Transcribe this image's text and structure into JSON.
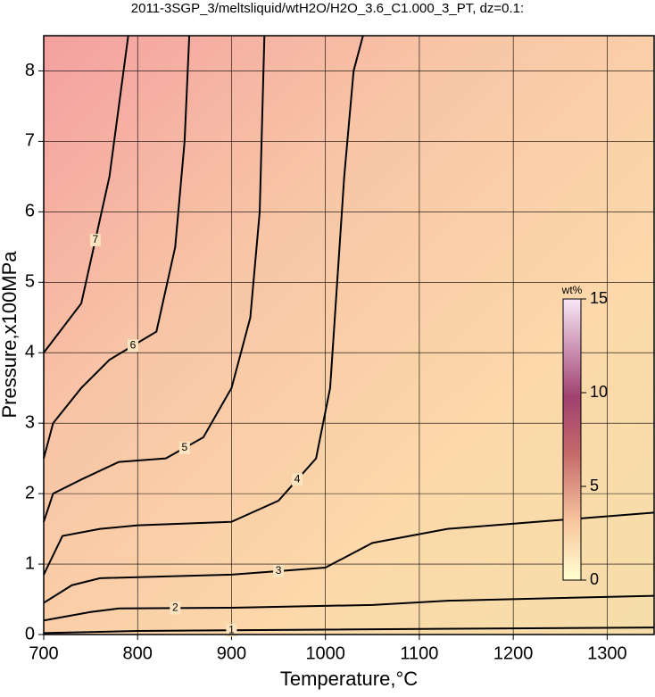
{
  "chart_data": {
    "type": "contour",
    "title": "2011-3SGP_3/meltsliquid/wtH2O/H2O_3.6_C1.000_3_PT, dz=0.1:",
    "x_label": "Temperature,°C",
    "y_label": "Pressure,x100MPa",
    "xlim": [
      700,
      1350
    ],
    "ylim": [
      0,
      8.5
    ],
    "xticks": [
      700,
      800,
      900,
      1000,
      1100,
      1200,
      1300
    ],
    "yticks": [
      0,
      1,
      2,
      3,
      4,
      5,
      6,
      7,
      8
    ],
    "grid": true,
    "colorbar": {
      "label": "wt%",
      "lim": [
        0,
        15
      ],
      "ticks": [
        0,
        5,
        10,
        15
      ]
    },
    "contours": [
      {
        "level": 1,
        "x": [
          700,
          800,
          1000,
          1350
        ],
        "y": [
          0.02,
          0.05,
          0.07,
          0.1
        ]
      },
      {
        "level": 2,
        "x": [
          700,
          750,
          780,
          900,
          1050,
          1130,
          1350
        ],
        "y": [
          0.2,
          0.32,
          0.37,
          0.38,
          0.42,
          0.48,
          0.55
        ]
      },
      {
        "level": 3,
        "x": [
          700,
          730,
          760,
          900,
          1000,
          1050,
          1130,
          1350
        ],
        "y": [
          0.45,
          0.7,
          0.8,
          0.85,
          0.95,
          1.3,
          1.5,
          1.73
        ]
      },
      {
        "level": 4,
        "x": [
          700,
          720,
          760,
          800,
          900,
          950,
          990,
          1005,
          1010,
          1020,
          1030,
          1040
        ],
        "y": [
          0.85,
          1.4,
          1.5,
          1.55,
          1.6,
          1.9,
          2.5,
          3.5,
          4.5,
          6.5,
          8,
          8.5
        ]
      },
      {
        "level": 5,
        "x": [
          700,
          710,
          740,
          780,
          830,
          870,
          900,
          920,
          930,
          935
        ],
        "y": [
          1.6,
          2.0,
          2.2,
          2.45,
          2.5,
          2.8,
          3.5,
          4.5,
          6,
          8.5
        ]
      },
      {
        "level": 6,
        "x": [
          700,
          710,
          740,
          770,
          820,
          840,
          850,
          855
        ],
        "y": [
          2.5,
          3.0,
          3.5,
          3.9,
          4.3,
          5.5,
          7,
          8.5
        ]
      },
      {
        "level": 7,
        "x": [
          700,
          740,
          770,
          780,
          790
        ],
        "y": [
          4.0,
          4.7,
          6.5,
          7.5,
          8.5
        ]
      }
    ]
  }
}
